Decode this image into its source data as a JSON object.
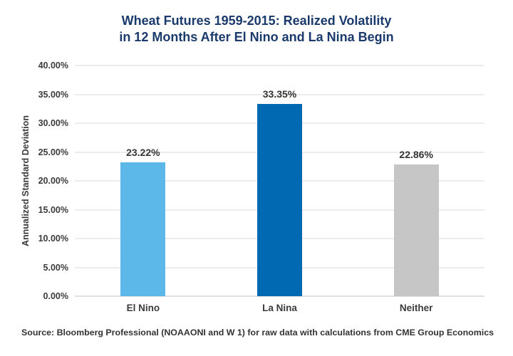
{
  "chart_data": {
    "type": "bar",
    "title": "Wheat Futures 1959-2015: Realized Volatility in 12 Months After El Nino and La Nina Begin",
    "title_lines": [
      "Wheat Futures 1959-2015: Realized Volatility",
      "in 12 Months After El Nino and La Nina Begin"
    ],
    "categories": [
      "El Nino",
      "La Nina",
      "Neither"
    ],
    "values": [
      23.22,
      33.35,
      22.86
    ],
    "value_labels": [
      "23.22%",
      "33.35%",
      "22.86%"
    ],
    "bar_colors": [
      "#5bb8e8",
      "#0069b1",
      "#c6c6c6"
    ],
    "xlabel": "",
    "ylabel": "Annualized Standard Deviation",
    "ylim": [
      0,
      40
    ],
    "ytick_step": 5,
    "ytick_labels": [
      "0.00%",
      "5.00%",
      "10.00%",
      "15.00%",
      "20.00%",
      "25.00%",
      "30.00%",
      "35.00%",
      "40.00%"
    ],
    "grid": true,
    "legend": "none"
  },
  "source_note": "Source: Bloomberg Professional (NOAAONI and W 1) for raw data with calculations from CME Group Economics",
  "colors": {
    "title": "#1a3a6c",
    "text": "#3b3b3b",
    "grid": "#ececec",
    "background": "#ffffff"
  }
}
